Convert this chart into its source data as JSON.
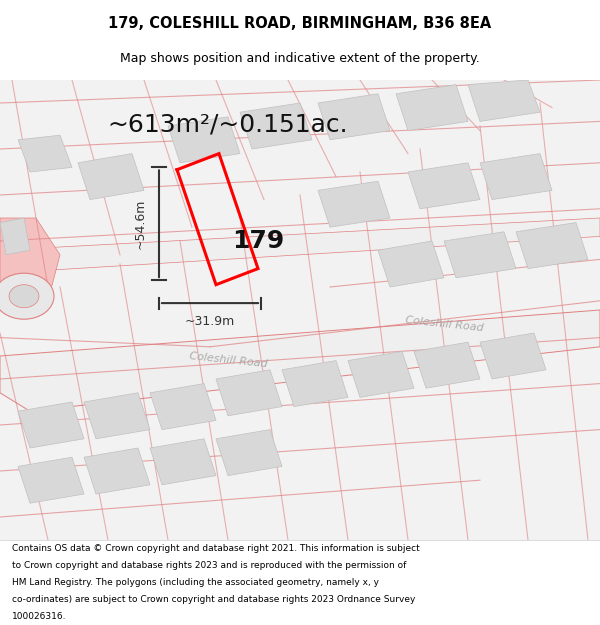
{
  "title": "179, COLESHILL ROAD, BIRMINGHAM, B36 8EA",
  "subtitle": "Map shows position and indicative extent of the property.",
  "area_text": "~613m²/~0.151ac.",
  "property_label": "179",
  "dim_vertical": "~54.6m",
  "dim_horizontal": "~31.9m",
  "road_label1": "Coleshill Road",
  "road_label2": "Coleshill Road",
  "footer_lines": [
    "Contains OS data © Crown copyright and database right 2021. This information is subject",
    "to Crown copyright and database rights 2023 and is reproduced with the permission of",
    "HM Land Registry. The polygons (including the associated geometry, namely x, y",
    "co-ordinates) are subject to Crown copyright and database rights 2023 Ordnance Survey",
    "100026316."
  ],
  "bg_color": "#ffffff",
  "map_bg": "#f2f2f2",
  "road_color": "#f5c0c0",
  "road_outline": "#e08080",
  "building_color": "#d8d8d8",
  "property_color": "#ff0000",
  "title_color": "#000000",
  "footer_color": "#000000",
  "dim_color": "#333333"
}
